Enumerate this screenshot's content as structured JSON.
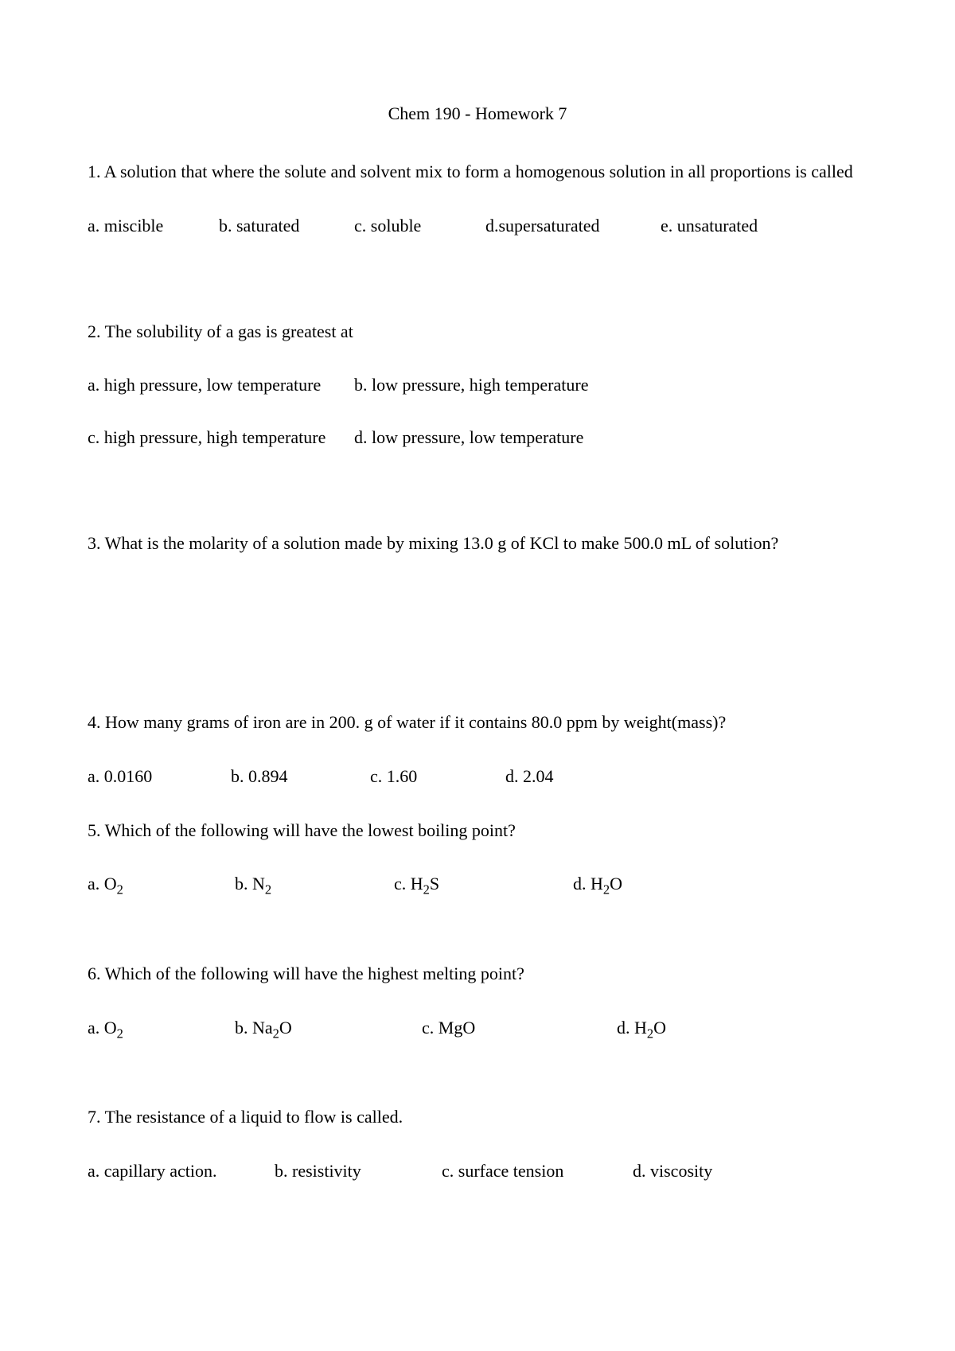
{
  "title": "Chem 190 - Homework 7",
  "questions": {
    "q1": {
      "text": "1. A solution that where the solute and solvent mix to form a homogenous solution in all proportions is called",
      "options": {
        "a": "a. miscible",
        "b": "b. saturated",
        "c": "c. soluble",
        "d": "d.supersaturated",
        "e": "e. unsaturated"
      }
    },
    "q2": {
      "text": "2. The solubility of a gas is greatest at",
      "options": {
        "a": "a. high pressure, low temperature",
        "b": "b. low pressure, high temperature",
        "c": "c. high pressure, high temperature",
        "d": "d. low pressure, low temperature"
      }
    },
    "q3": {
      "text": "3. What is the molarity of a solution made by mixing 13.0 g of KCl to make 500.0 mL of solution?"
    },
    "q4": {
      "text": "4. How many grams of iron are in 200. g of water if it contains 80.0 ppm by weight(mass)?",
      "options": {
        "a": "a. 0.0160",
        "b": "b. 0.894",
        "c": "c. 1.60",
        "d": "d. 2.04"
      }
    },
    "q5": {
      "text": "5. Which of the following will have the lowest boiling point?",
      "options": {
        "a_pre": "a. O",
        "a_sub": "2",
        "b_pre": "b. N",
        "b_sub": "2",
        "c_pre": "c. H",
        "c_sub": "2",
        "c_post": "S",
        "d_pre": "d. H",
        "d_sub": "2",
        "d_post": "O"
      }
    },
    "q6": {
      "text": "6. Which of the following will have the highest melting point?",
      "options": {
        "a_pre": "a. O",
        "a_sub": "2",
        "b_pre": "b. Na",
        "b_sub": "2",
        "b_post": "O",
        "c": "c. MgO",
        "d_pre": "d. H",
        "d_sub": "2",
        "d_post": "O"
      }
    },
    "q7": {
      "text": "7. The resistance of a liquid to flow is called.",
      "options": {
        "a": "a. capillary action.",
        "b": "b. resistivity",
        "c": "c. surface tension",
        "d": "d. viscosity"
      }
    }
  }
}
